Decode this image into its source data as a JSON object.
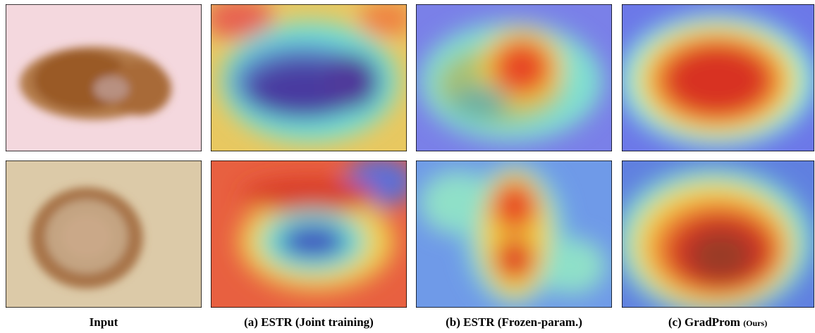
{
  "columns": [
    {
      "caption": "Input"
    },
    {
      "caption": "(a) ESTR (Joint training)"
    },
    {
      "caption": "(b) ESTR (Frozen-param.)"
    },
    {
      "caption": "(c) GradProm",
      "caption_note": "(Ours)"
    }
  ]
}
